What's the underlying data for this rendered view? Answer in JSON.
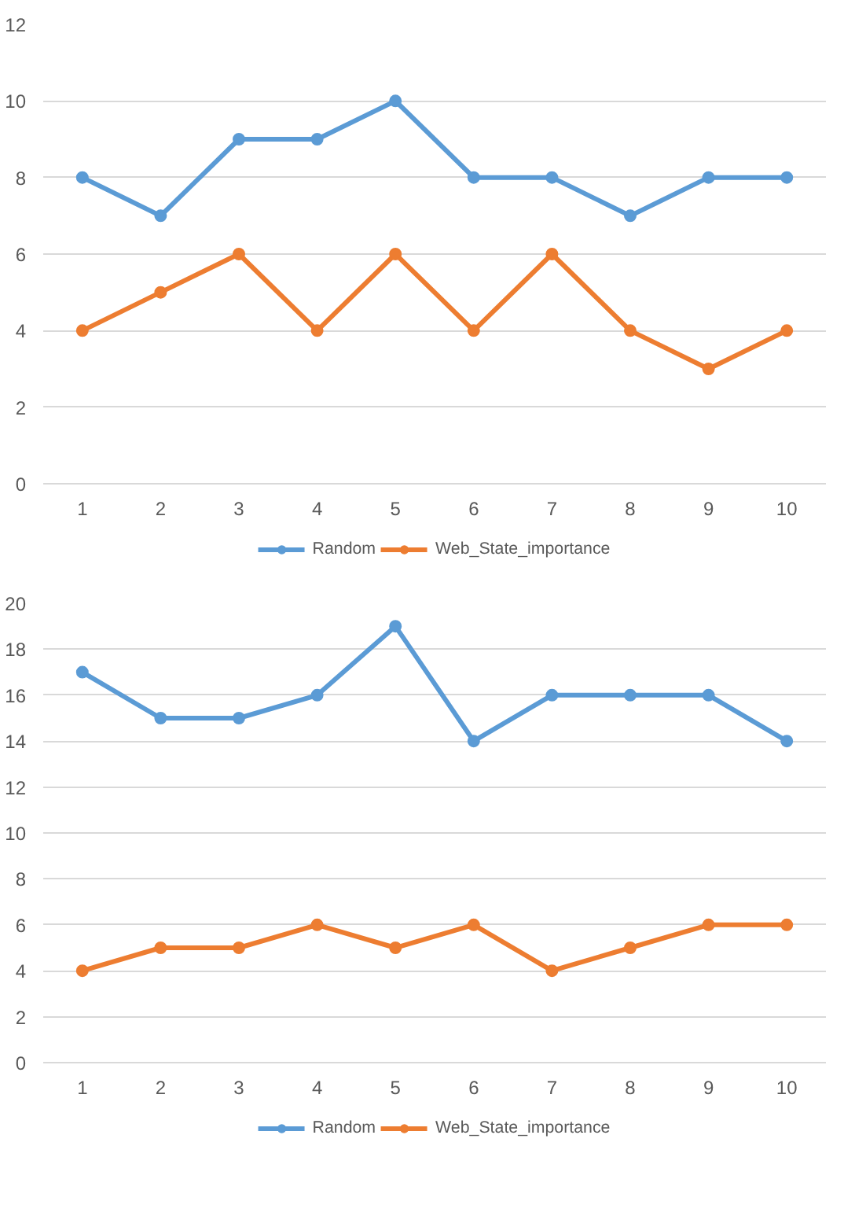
{
  "chart_data": [
    {
      "type": "line",
      "categories": [
        "1",
        "2",
        "3",
        "4",
        "5",
        "6",
        "7",
        "8",
        "9",
        "10"
      ],
      "ylim": [
        0,
        12
      ],
      "yticks": [
        0,
        2,
        4,
        6,
        8,
        10,
        12
      ],
      "grid": "y",
      "legend": "bottom",
      "marker": "circle",
      "line_style": "solid",
      "series": [
        {
          "name": "Random",
          "color": "#5b9bd5",
          "values": [
            8,
            7,
            9,
            9,
            10,
            8,
            8,
            7,
            8,
            8
          ]
        },
        {
          "name": "Web_State_importance",
          "color": "#ed7d31",
          "values": [
            4,
            5,
            6,
            4,
            6,
            4,
            6,
            4,
            3,
            4
          ]
        }
      ]
    },
    {
      "type": "line",
      "categories": [
        "1",
        "2",
        "3",
        "4",
        "5",
        "6",
        "7",
        "8",
        "9",
        "10"
      ],
      "ylim": [
        0,
        20
      ],
      "yticks": [
        0,
        2,
        4,
        6,
        8,
        10,
        12,
        14,
        16,
        18,
        20
      ],
      "grid": "y",
      "legend": "bottom",
      "marker": "circle",
      "line_style": "solid",
      "series": [
        {
          "name": "Random",
          "color": "#5b9bd5",
          "values": [
            17,
            15,
            15,
            16,
            19,
            14,
            16,
            16,
            16,
            14
          ]
        },
        {
          "name": "Web_State_importance",
          "color": "#ed7d31",
          "values": [
            4,
            5,
            5,
            6,
            5,
            6,
            4,
            5,
            6,
            6
          ]
        }
      ]
    }
  ]
}
